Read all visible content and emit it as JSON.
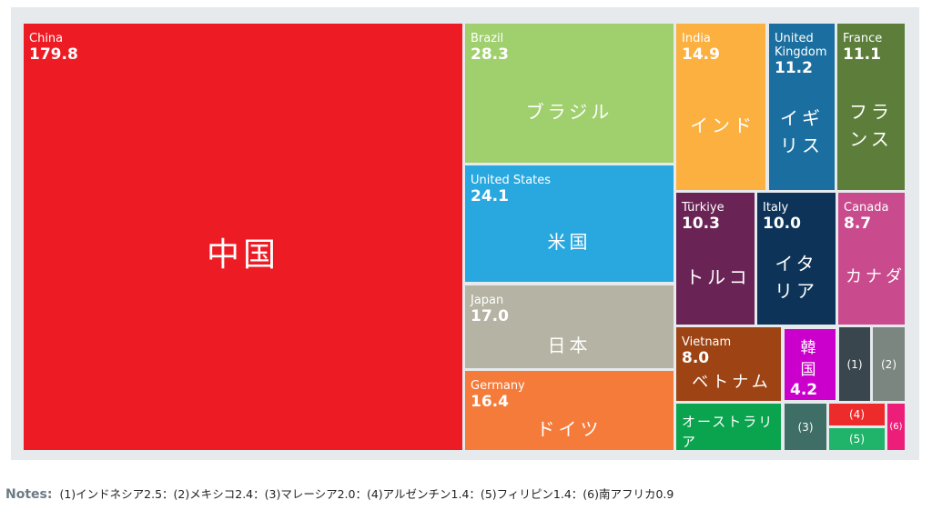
{
  "chart_data": {
    "type": "treemap",
    "items": [
      {
        "name": "China",
        "value": 179.8,
        "label": "中国",
        "color": "#ed1c24"
      },
      {
        "name": "Brazil",
        "value": 28.3,
        "label": "ブラジル",
        "color": "#a0cf6e"
      },
      {
        "name": "United States",
        "value": 24.1,
        "label": "米国",
        "color": "#29a8e0"
      },
      {
        "name": "Japan",
        "value": 17.0,
        "value_label": "17.0",
        "label": "日本",
        "color": "#b5b3a3"
      },
      {
        "name": "Germany",
        "value": 16.4,
        "label": "ドイツ",
        "color": "#f47b3a"
      },
      {
        "name": "India",
        "value": 14.9,
        "label": "インド",
        "color": "#fbb040"
      },
      {
        "name": "United Kingdom",
        "value": 11.2,
        "label": "イギリス",
        "color": "#1b6fa0"
      },
      {
        "name": "France",
        "value": 11.1,
        "label": "フランス",
        "color": "#5c7e3a"
      },
      {
        "name": "Türkiye",
        "value": 10.3,
        "label": "トルコ",
        "color": "#6a2355"
      },
      {
        "name": "Italy",
        "value": 10.0,
        "value_label": "10.0",
        "label": "イタリア",
        "color": "#0d3458"
      },
      {
        "name": "Canada",
        "value": 8.7,
        "label": "カナダ",
        "color": "#c94b8e"
      },
      {
        "name": "Vietnam",
        "value": 8.0,
        "value_label": "8.0",
        "label": "ベトナム",
        "color": "#9e4313"
      },
      {
        "value": 4.2,
        "label": "韓国",
        "color": "#cc00cc"
      },
      {
        "value": 5.0,
        "label": "オーストラリア",
        "color": "#0aa34e"
      },
      {
        "value": 2.5,
        "label": "(1)",
        "color": "#39464d"
      },
      {
        "value": 2.4,
        "label": "(2)",
        "color": "#7b8680"
      },
      {
        "value": 2.0,
        "label": "(3)",
        "color": "#3e6e66"
      },
      {
        "value": 1.4,
        "label": "(4)",
        "color": "#ee2b2b"
      },
      {
        "value": 1.4,
        "label": "(5)",
        "color": "#20b36a"
      },
      {
        "value": 0.9,
        "label": "(6)",
        "color": "#ed1e7a"
      }
    ],
    "notes_label": "Notes:",
    "notes": "(1)インドネシア2.5：(2)メキシコ2.4：(3)マレーシア2.0：(4)アルゼンチン1.4：(5)フィリピン1.4：(6)南アフリカ0.9"
  }
}
